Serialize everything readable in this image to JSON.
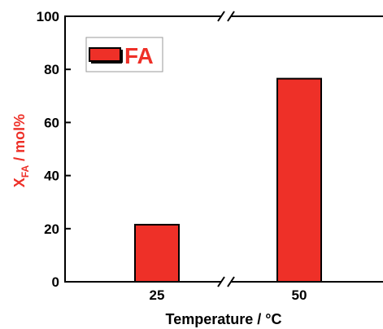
{
  "chart_data": {
    "type": "bar",
    "categories": [
      "25",
      "50"
    ],
    "series": [
      {
        "name": "FA",
        "values": [
          21.5,
          76.5
        ]
      }
    ],
    "title": "",
    "xlabel": "Temperature / °C",
    "ylabel_main": "X",
    "ylabel_sub": "FA",
    "ylabel_unit": " / mol%",
    "ylim": [
      0,
      100
    ],
    "yticks": [
      "0",
      "20",
      "40",
      "60",
      "80",
      "100"
    ],
    "axis_break": true,
    "legend_position": "top-left",
    "grid": false,
    "colors": {
      "bar_fill": "#ee3028",
      "bar_stroke": "#000000",
      "ylabel_color": "#ee3028",
      "legend_text": "#ee3028"
    }
  }
}
